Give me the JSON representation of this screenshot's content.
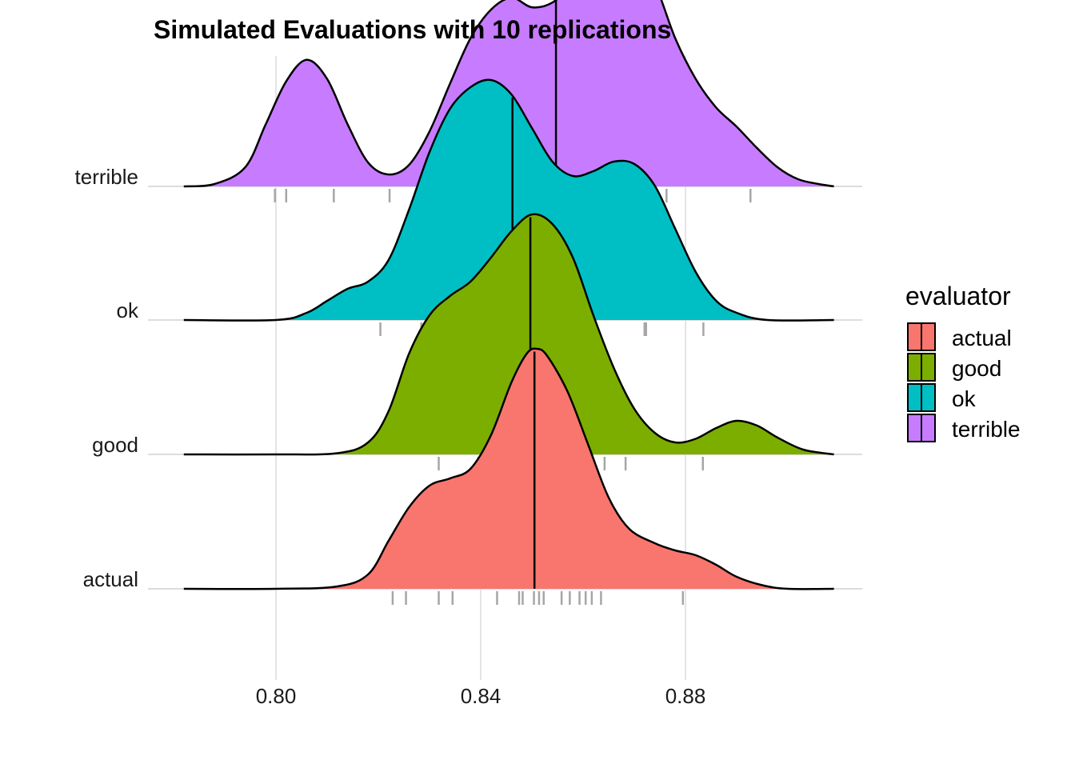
{
  "chart_data": {
    "type": "ridgeline",
    "title": "Simulated Evaluations with 10 replications",
    "xlabel": "",
    "ylabel": "",
    "xlim": [
      0.782,
      0.915
    ],
    "x_ticks": [
      "0.80",
      "0.84",
      "0.88"
    ],
    "x_tick_values": [
      0.8,
      0.84,
      0.88
    ],
    "grid": true,
    "legend": {
      "title": "evaluator",
      "placement": "right",
      "entries": [
        "actual",
        "good",
        "ok",
        "terrible"
      ]
    },
    "categories": [
      "actual",
      "good",
      "ok",
      "terrible"
    ],
    "colors": {
      "actual": "#F8766D",
      "good": "#7CAE00",
      "ok": "#00BFC4",
      "terrible": "#C77CFF"
    },
    "series": [
      {
        "name": "actual",
        "median": 0.8505,
        "points": [
          0.8228,
          0.8254,
          0.8318,
          0.8345,
          0.8432,
          0.8475,
          0.8482,
          0.8504,
          0.8514,
          0.8523,
          0.8558,
          0.8574,
          0.8593,
          0.8605,
          0.8617,
          0.8635,
          0.8795
        ],
        "density": [
          [
            0.782,
            0.0
          ],
          [
            0.8,
            0.0
          ],
          [
            0.812,
            0.01
          ],
          [
            0.818,
            0.06
          ],
          [
            0.822,
            0.2
          ],
          [
            0.826,
            0.34
          ],
          [
            0.83,
            0.43
          ],
          [
            0.834,
            0.46
          ],
          [
            0.838,
            0.5
          ],
          [
            0.842,
            0.64
          ],
          [
            0.846,
            0.86
          ],
          [
            0.849,
            0.98
          ],
          [
            0.851,
            1.0
          ],
          [
            0.853,
            0.97
          ],
          [
            0.857,
            0.82
          ],
          [
            0.861,
            0.6
          ],
          [
            0.865,
            0.38
          ],
          [
            0.869,
            0.25
          ],
          [
            0.874,
            0.19
          ],
          [
            0.878,
            0.16
          ],
          [
            0.882,
            0.14
          ],
          [
            0.886,
            0.1
          ],
          [
            0.89,
            0.05
          ],
          [
            0.895,
            0.015
          ],
          [
            0.9,
            0.0
          ],
          [
            0.909,
            0.0
          ]
        ]
      },
      {
        "name": "good",
        "median": 0.8497,
        "points": [
          0.8318,
          0.8395,
          0.8402,
          0.8423,
          0.8454,
          0.8482,
          0.8512,
          0.8535,
          0.8557,
          0.8578,
          0.8619,
          0.8642,
          0.8683,
          0.8834
        ],
        "density": [
          [
            0.782,
            0.0
          ],
          [
            0.8,
            0.0
          ],
          [
            0.812,
            0.005
          ],
          [
            0.818,
            0.05
          ],
          [
            0.822,
            0.18
          ],
          [
            0.826,
            0.42
          ],
          [
            0.83,
            0.58
          ],
          [
            0.834,
            0.66
          ],
          [
            0.838,
            0.72
          ],
          [
            0.842,
            0.82
          ],
          [
            0.846,
            0.93
          ],
          [
            0.85,
            1.0
          ],
          [
            0.854,
            0.96
          ],
          [
            0.858,
            0.82
          ],
          [
            0.862,
            0.58
          ],
          [
            0.866,
            0.36
          ],
          [
            0.87,
            0.19
          ],
          [
            0.874,
            0.09
          ],
          [
            0.878,
            0.05
          ],
          [
            0.882,
            0.065
          ],
          [
            0.886,
            0.11
          ],
          [
            0.89,
            0.14
          ],
          [
            0.894,
            0.12
          ],
          [
            0.898,
            0.07
          ],
          [
            0.903,
            0.02
          ],
          [
            0.909,
            0.0
          ]
        ]
      },
      {
        "name": "ok",
        "median": 0.8462,
        "points": [
          0.8204,
          0.8284,
          0.8323,
          0.8405,
          0.8427,
          0.8448,
          0.8475,
          0.8498,
          0.8521,
          0.8555,
          0.8595,
          0.8615,
          0.8625,
          0.872,
          0.8723,
          0.8835
        ],
        "density": [
          [
            0.782,
            0.0
          ],
          [
            0.8,
            0.0
          ],
          [
            0.806,
            0.03
          ],
          [
            0.81,
            0.08
          ],
          [
            0.814,
            0.13
          ],
          [
            0.818,
            0.16
          ],
          [
            0.822,
            0.25
          ],
          [
            0.826,
            0.46
          ],
          [
            0.83,
            0.7
          ],
          [
            0.834,
            0.88
          ],
          [
            0.838,
            0.97
          ],
          [
            0.842,
            1.0
          ],
          [
            0.846,
            0.94
          ],
          [
            0.85,
            0.8
          ],
          [
            0.854,
            0.66
          ],
          [
            0.858,
            0.6
          ],
          [
            0.862,
            0.62
          ],
          [
            0.866,
            0.66
          ],
          [
            0.87,
            0.65
          ],
          [
            0.874,
            0.56
          ],
          [
            0.878,
            0.38
          ],
          [
            0.882,
            0.2
          ],
          [
            0.886,
            0.08
          ],
          [
            0.89,
            0.03
          ],
          [
            0.896,
            0.0
          ],
          [
            0.909,
            0.0
          ]
        ]
      },
      {
        "name": "terrible",
        "median": 0.8547,
        "points": [
          0.7998,
          0.802,
          0.8113,
          0.8222,
          0.8305,
          0.8437,
          0.8535,
          0.8574,
          0.8583,
          0.8591,
          0.8605,
          0.8612,
          0.8663,
          0.8675,
          0.8698,
          0.8711,
          0.8735,
          0.8763,
          0.8927
        ],
        "density": [
          [
            0.782,
            0.0
          ],
          [
            0.788,
            0.01
          ],
          [
            0.794,
            0.08
          ],
          [
            0.798,
            0.26
          ],
          [
            0.802,
            0.44
          ],
          [
            0.806,
            0.53
          ],
          [
            0.81,
            0.45
          ],
          [
            0.814,
            0.26
          ],
          [
            0.818,
            0.1
          ],
          [
            0.822,
            0.05
          ],
          [
            0.826,
            0.09
          ],
          [
            0.83,
            0.23
          ],
          [
            0.834,
            0.43
          ],
          [
            0.838,
            0.62
          ],
          [
            0.842,
            0.74
          ],
          [
            0.846,
            0.79
          ],
          [
            0.85,
            0.75
          ],
          [
            0.854,
            0.77
          ],
          [
            0.858,
            0.85
          ],
          [
            0.862,
            0.94
          ],
          [
            0.866,
            0.995
          ],
          [
            0.87,
            0.98
          ],
          [
            0.874,
            0.85
          ],
          [
            0.878,
            0.62
          ],
          [
            0.882,
            0.45
          ],
          [
            0.886,
            0.33
          ],
          [
            0.89,
            0.25
          ],
          [
            0.894,
            0.16
          ],
          [
            0.898,
            0.08
          ],
          [
            0.902,
            0.03
          ],
          [
            0.906,
            0.01
          ],
          [
            0.909,
            0.0
          ]
        ]
      }
    ]
  }
}
